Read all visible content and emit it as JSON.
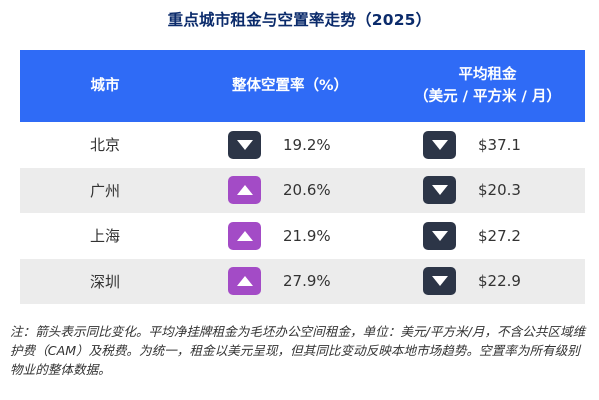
{
  "title": "重点城市租金与空置率走势（2025）",
  "colors": {
    "header_bg": "#2f6bf6",
    "title_text": "#0b2b6b",
    "up_badge": "#a34bc6",
    "down_badge": "#2c3547",
    "alt_row": "#ececec"
  },
  "table": {
    "headers": {
      "city": "城市",
      "vacancy": "整体空置率（%）",
      "rent_line1": "平均租金",
      "rent_line2": "（美元 / 平方米 / 月）"
    },
    "rows": [
      {
        "city": "北京",
        "vacancy_trend": "down",
        "vacancy_icon": "triangle-down-icon",
        "vacancy": "19.2%",
        "rent_trend": "down",
        "rent_icon": "triangle-down-icon",
        "rent": "$37.1"
      },
      {
        "city": "广州",
        "vacancy_trend": "up",
        "vacancy_icon": "triangle-up-icon",
        "vacancy": "20.6%",
        "rent_trend": "down",
        "rent_icon": "triangle-down-icon",
        "rent": "$20.3"
      },
      {
        "city": "上海",
        "vacancy_trend": "up",
        "vacancy_icon": "triangle-up-icon",
        "vacancy": "21.9%",
        "rent_trend": "down",
        "rent_icon": "triangle-down-icon",
        "rent": "$27.2"
      },
      {
        "city": "深圳",
        "vacancy_trend": "up",
        "vacancy_icon": "triangle-up-icon",
        "vacancy": "27.9%",
        "rent_trend": "down",
        "rent_icon": "triangle-down-icon",
        "rent": "$22.9"
      }
    ]
  },
  "note": "注：箭头表示同比变化。平均净挂牌租金为毛坯办公空间租金，单位：美元/平方米/月，不含公共区域维护费（CAM）及税费。为统一，租金以美元呈现，但其同比变动反映本地市场趋势。空置率为所有级别物业的整体数据。"
}
